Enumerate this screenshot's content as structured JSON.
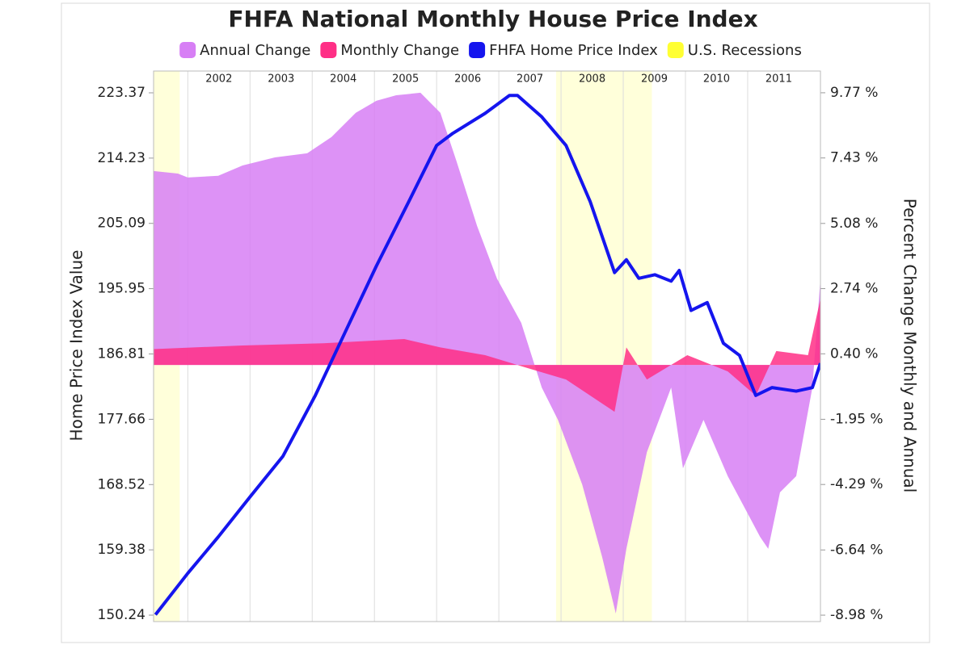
{
  "chart_data": {
    "type": "combo",
    "title": "FHFA National Monthly House Price Index",
    "y_label": "Home Price Index Value",
    "y2_label": "Percent Change Monthly and Annual",
    "xlim": [
      2001.45,
      2012.17
    ],
    "xticks": [
      2002,
      2003,
      2004,
      2005,
      2006,
      2007,
      2008,
      2009,
      2010,
      2011
    ],
    "xgrid": true,
    "ylim": [
      149.34,
      226.42
    ],
    "yticks": [
      150.24,
      159.38,
      168.52,
      177.66,
      186.81,
      195.95,
      205.09,
      214.23,
      223.37
    ],
    "y2lim": [
      -9.21,
      10.55
    ],
    "y2ticks": [
      {
        "value": -8.98,
        "label": "-8.98 %"
      },
      {
        "value": -6.64,
        "label": "-6.64 %"
      },
      {
        "value": -4.29,
        "label": "-4.29 %"
      },
      {
        "value": -1.95,
        "label": "-1.95 %"
      },
      {
        "value": 0.4,
        "label": "0.40 %"
      },
      {
        "value": 2.74,
        "label": "2.74 %"
      },
      {
        "value": 5.08,
        "label": "5.08 %"
      },
      {
        "value": 7.43,
        "label": "7.43 %"
      },
      {
        "value": 9.77,
        "label": "9.77 %"
      }
    ],
    "series": [
      {
        "name": "Annual Change",
        "type": "area",
        "axis": "y2",
        "color": "#d77ff5",
        "x": [
          2001.45,
          2001.84,
          2002.0,
          2002.49,
          2002.88,
          2003.4,
          2003.92,
          2004.31,
          2004.7,
          2005.03,
          2005.35,
          2005.74,
          2006.06,
          2006.32,
          2006.65,
          2006.97,
          2007.36,
          2007.69,
          2007.95,
          2008.34,
          2008.66,
          2008.88,
          2009.05,
          2009.38,
          2009.77,
          2009.96,
          2010.29,
          2010.68,
          2011.2,
          2011.33,
          2011.52,
          2011.78,
          2012.04,
          2012.17
        ],
        "values": [
          6.96,
          6.87,
          6.73,
          6.79,
          7.16,
          7.45,
          7.6,
          8.18,
          9.05,
          9.48,
          9.68,
          9.77,
          9.05,
          7.31,
          4.99,
          3.1,
          1.51,
          -0.81,
          -1.97,
          -4.29,
          -6.89,
          -8.92,
          -6.6,
          -3.13,
          -0.81,
          -3.71,
          -1.97,
          -3.99,
          -6.17,
          -6.6,
          -4.57,
          -3.99,
          -0.81,
          3.1
        ]
      },
      {
        "name": "Monthly Change",
        "type": "area",
        "axis": "y2",
        "color": "#ff2f86",
        "x": [
          2001.45,
          2002.88,
          2004.18,
          2005.48,
          2006.06,
          2006.78,
          2007.43,
          2008.08,
          2008.86,
          2009.05,
          2009.38,
          2010.03,
          2010.68,
          2011.13,
          2011.46,
          2011.97,
          2012.17
        ],
        "values": [
          0.57,
          0.7,
          0.78,
          0.93,
          0.63,
          0.35,
          -0.09,
          -0.52,
          -1.68,
          0.63,
          -0.52,
          0.35,
          -0.23,
          -1.1,
          0.5,
          0.35,
          2.38
        ]
      },
      {
        "name": "FHFA Home Price Index",
        "type": "line",
        "color": "#1515ee",
        "x": [
          2001.48,
          2002.0,
          2002.49,
          2003.01,
          2003.53,
          2004.05,
          2004.51,
          2005.03,
          2005.55,
          2006.0,
          2006.26,
          2006.78,
          2007.17,
          2007.3,
          2007.69,
          2008.08,
          2008.47,
          2008.86,
          2009.05,
          2009.25,
          2009.51,
          2009.77,
          2009.9,
          2010.09,
          2010.35,
          2010.61,
          2010.87,
          2011.13,
          2011.39,
          2011.78,
          2012.04,
          2012.17
        ],
        "values": [
          150.3,
          156.1,
          161.2,
          166.9,
          172.5,
          181.0,
          189.5,
          199.1,
          208.1,
          216.0,
          217.7,
          220.5,
          223.0,
          223.0,
          220.0,
          216.0,
          208.1,
          198.2,
          200.0,
          197.4,
          197.9,
          197.0,
          198.5,
          192.9,
          194.0,
          188.3,
          186.6,
          181.0,
          182.1,
          181.6,
          182.1,
          185.5
        ]
      },
      {
        "name": "U.S. Recessions",
        "type": "band",
        "color": "#ffff33",
        "ranges": [
          [
            2001.2,
            2001.87
          ],
          [
            2007.92,
            2009.46
          ]
        ]
      }
    ]
  }
}
